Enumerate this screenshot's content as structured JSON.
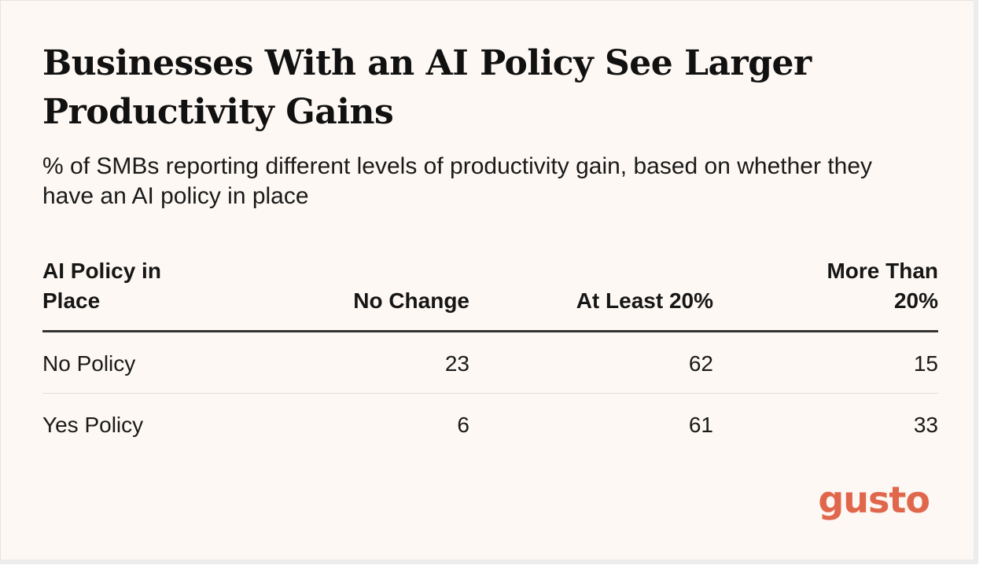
{
  "chart_data": {
    "type": "table",
    "title": "Businesses With an AI Policy See Larger Productivity Gains",
    "subtitle": "% of SMBs reporting different levels of productivity gain, based on whether they have an AI policy in place",
    "columns": [
      "AI Policy in Place",
      "No Change",
      "At Least 20%",
      "More Than 20%"
    ],
    "rows": [
      {
        "label": "No Policy",
        "values": [
          "23",
          "62",
          "15"
        ]
      },
      {
        "label": "Yes Policy",
        "values": [
          "6",
          "61",
          "33"
        ]
      }
    ]
  },
  "brand": {
    "logo_text": "gusto",
    "color": "#e0674c"
  },
  "colors": {
    "background": "#fdf8f3",
    "text": "#161616",
    "header_rule": "#333333",
    "row_rule": "#e3ded8"
  }
}
